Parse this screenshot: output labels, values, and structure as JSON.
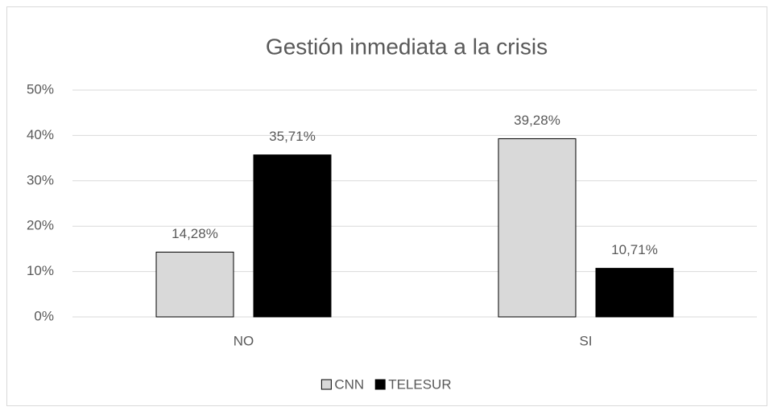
{
  "chart_data": {
    "type": "bar",
    "title": "Gestión inmediata a la crisis",
    "categories": [
      "NO",
      "SI"
    ],
    "series": [
      {
        "name": "CNN",
        "color": "#d9d9d9",
        "values": [
          14.28,
          39.28
        ],
        "value_labels": [
          "14,28%",
          "39,28%"
        ]
      },
      {
        "name": "TELESUR",
        "color": "#000000",
        "values": [
          35.71,
          10.71
        ],
        "value_labels": [
          "35,71%",
          "10,71%"
        ]
      }
    ],
    "ylim": [
      0,
      50
    ],
    "yticks": [
      {
        "value": 0,
        "label": "0%"
      },
      {
        "value": 10,
        "label": "10%"
      },
      {
        "value": 20,
        "label": "20%"
      },
      {
        "value": 30,
        "label": "30%"
      },
      {
        "value": 40,
        "label": "40%"
      },
      {
        "value": 50,
        "label": "50%"
      }
    ],
    "grid": true,
    "legend": "bottom"
  }
}
